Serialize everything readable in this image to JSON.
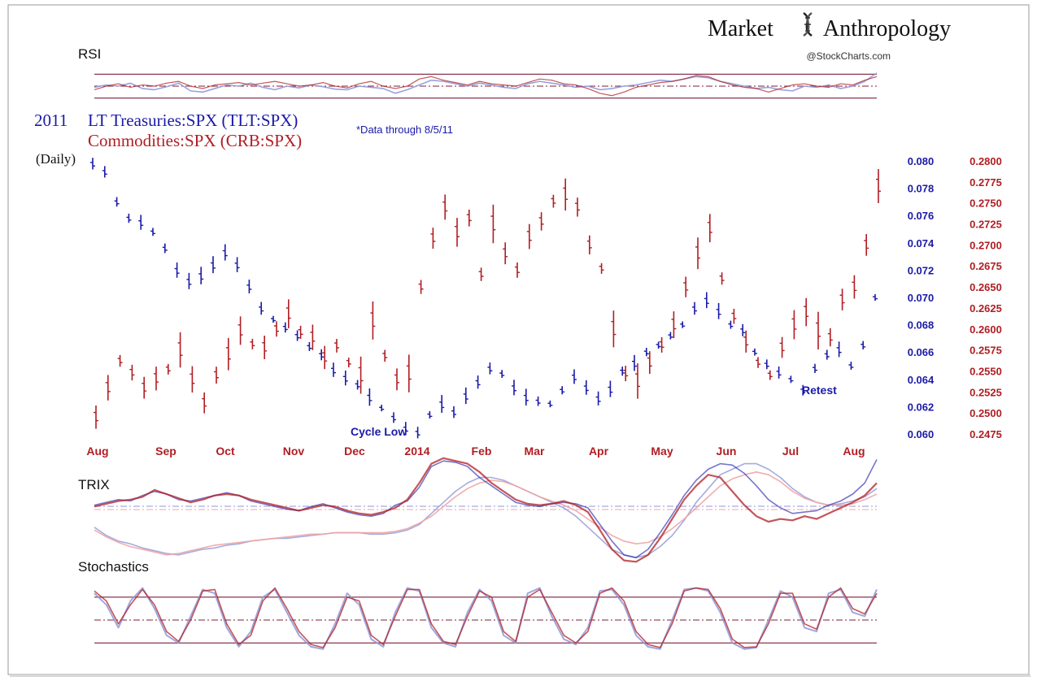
{
  "brand": {
    "name_part1": "Market",
    "name_part2": "Anthropology",
    "logo_icon": "dna-helix-icon",
    "credit": "@StockCharts.com"
  },
  "colors": {
    "blue": "#1a1aa8",
    "red": "#b01e23",
    "light_blue": "#8f97d8",
    "light_red": "#f0a4a4",
    "band": "#7b1f3a"
  },
  "panels": {
    "rsi_label": "RSI",
    "trix_label": "TRIX",
    "stoch_label": "Stochastics"
  },
  "titles": {
    "year": "2011",
    "blue_title": "LT Treasuries:SPX (TLT:SPX)",
    "red_title": "Commodities:SPX (CRB:SPX)",
    "note": "*Data through 8/5/11",
    "daily": "(Daily)"
  },
  "annotations": {
    "cycle_low": "Cycle Low",
    "retest": "Retest"
  },
  "chart_data": {
    "type": "bar",
    "title": "2011 LT Treasuries:SPX (TLT:SPX) / Commodities:SPX (CRB:SPX)",
    "x_tick_labels": [
      "Aug",
      "Sep",
      "Oct",
      "Nov",
      "Dec",
      "2014",
      "Feb",
      "Mar",
      "Apr",
      "May",
      "Jun",
      "Jul",
      "Aug"
    ],
    "left_axis": {
      "ticks": [
        "0.080",
        "0.078",
        "0.076",
        "0.074",
        "0.072",
        "0.070",
        "0.068",
        "0.066",
        "0.064",
        "0.062",
        "0.060"
      ],
      "range": [
        0.06,
        0.08
      ]
    },
    "right_axis": {
      "ticks": [
        "0.2800",
        "0.2775",
        "0.2750",
        "0.2725",
        "0.2700",
        "0.2675",
        "0.2650",
        "0.2625",
        "0.2600",
        "0.2575",
        "0.2550",
        "0.2525",
        "0.2500",
        "0.2475"
      ],
      "range": [
        0.2475,
        0.28
      ]
    },
    "series": [
      {
        "name": "TLT:SPX",
        "axis": "left",
        "values": [
          0.0798,
          0.0792,
          0.077,
          0.0758,
          0.0755,
          0.0748,
          0.0736,
          0.072,
          0.0712,
          0.0716,
          0.0724,
          0.0733,
          0.0724,
          0.0708,
          0.0692,
          0.0684,
          0.0678,
          0.0672,
          0.0664,
          0.0658,
          0.0647,
          0.0641,
          0.0636,
          0.0627,
          0.0619,
          0.0612,
          0.0604,
          0.0601,
          0.0614,
          0.0622,
          0.0616,
          0.0628,
          0.0638,
          0.0648,
          0.0644,
          0.0634,
          0.0627,
          0.0624,
          0.0622,
          0.0632,
          0.0642,
          0.0634,
          0.0626,
          0.0633,
          0.0646,
          0.0652,
          0.066,
          0.0665,
          0.0672,
          0.068,
          0.0692,
          0.0698,
          0.069,
          0.068,
          0.0676,
          0.066,
          0.0651,
          0.0645,
          0.064,
          0.0632,
          0.0648,
          0.0658,
          0.0662,
          0.065,
          0.0665,
          0.07
        ]
      },
      {
        "name": "CRB:SPX",
        "axis": "right",
        "values": [
          0.2495,
          0.253,
          0.2562,
          0.2548,
          0.253,
          0.2541,
          0.2552,
          0.2575,
          0.254,
          0.2512,
          0.2545,
          0.257,
          0.2598,
          0.2582,
          0.2578,
          0.26,
          0.2618,
          0.2596,
          0.259,
          0.2566,
          0.258,
          0.256,
          0.2545,
          0.261,
          0.2568,
          0.254,
          0.2547,
          0.265,
          0.2708,
          0.2745,
          0.2715,
          0.2732,
          0.2665,
          0.2725,
          0.269,
          0.267,
          0.271,
          0.2728,
          0.2752,
          0.276,
          0.2745,
          0.27,
          0.2672,
          0.26,
          0.2547,
          0.2538,
          0.256,
          0.2581,
          0.2605,
          0.265,
          0.269,
          0.272,
          0.266,
          0.2615,
          0.2585,
          0.256,
          0.2545,
          0.2578,
          0.2605,
          0.262,
          0.2598,
          0.259,
          0.2635,
          0.265,
          0.27,
          0.277
        ]
      }
    ],
    "indicators": {
      "rsi": {
        "overbought": 70,
        "oversold": 30,
        "mid": 50,
        "blue": [
          48,
          52,
          50,
          55,
          46,
          44,
          49,
          55,
          42,
          40,
          46,
          52,
          50,
          55,
          48,
          44,
          50,
          47,
          52,
          49,
          45,
          44,
          50,
          48,
          46,
          38,
          44,
          52,
          60,
          58,
          54,
          50,
          55,
          52,
          48,
          46,
          54,
          58,
          55,
          52,
          48,
          50,
          44,
          46,
          50,
          52,
          56,
          60,
          58,
          62,
          66,
          64,
          58,
          54,
          50,
          46,
          48,
          44,
          42,
          50,
          48,
          52,
          46,
          50,
          58,
          72
        ],
        "red": [
          44,
          50,
          54,
          48,
          52,
          50,
          55,
          58,
          50,
          46,
          52,
          54,
          56,
          52,
          55,
          58,
          54,
          50,
          52,
          56,
          50,
          47,
          54,
          58,
          50,
          46,
          50,
          62,
          66,
          60,
          56,
          52,
          58,
          54,
          52,
          50,
          56,
          62,
          60,
          54,
          52,
          46,
          38,
          34,
          40,
          48,
          52,
          56,
          58,
          62,
          68,
          66,
          58,
          52,
          48,
          46,
          40,
          46,
          52,
          54,
          50,
          48,
          54,
          52,
          60,
          66
        ]
      },
      "trix": {
        "blue_fast": [
          0.2,
          0.4,
          0.6,
          0.5,
          0.9,
          1.2,
          1.0,
          0.6,
          0.5,
          0.7,
          0.9,
          1.1,
          0.9,
          0.5,
          0.3,
          0.1,
          -0.1,
          -0.2,
          0.1,
          0.3,
          0.0,
          -0.3,
          -0.5,
          -0.6,
          -0.4,
          0.2,
          0.5,
          1.5,
          3.0,
          3.4,
          3.3,
          3.0,
          2.2,
          1.6,
          1.0,
          0.4,
          0.2,
          0.1,
          0.3,
          0.4,
          0.3,
          0.0,
          -1.2,
          -2.4,
          -3.4,
          -3.6,
          -3.0,
          -1.8,
          -0.5,
          0.9,
          2.0,
          2.8,
          3.2,
          3.1,
          2.5,
          1.6,
          0.6,
          0.0,
          -0.4,
          -0.3,
          -0.2,
          0.2,
          0.5,
          1.0,
          1.8,
          3.5
        ],
        "blue_slow": [
          -1.4,
          -2.0,
          -2.4,
          -2.6,
          -2.9,
          -3.1,
          -3.3,
          -3.4,
          -3.2,
          -3.0,
          -2.9,
          -2.7,
          -2.6,
          -2.4,
          -2.3,
          -2.2,
          -2.2,
          -2.1,
          -2.0,
          -1.9,
          -1.8,
          -1.8,
          -1.8,
          -1.9,
          -1.9,
          -1.8,
          -1.6,
          -1.2,
          -0.4,
          0.4,
          1.2,
          1.8,
          2.2,
          2.2,
          2.0,
          1.6,
          1.2,
          0.8,
          0.4,
          0.0,
          -0.6,
          -1.4,
          -2.2,
          -3.0,
          -3.4,
          -3.6,
          -3.4,
          -2.8,
          -2.0,
          -0.9,
          0.4,
          1.4,
          2.4,
          2.8,
          3.2,
          3.2,
          2.8,
          2.2,
          1.4,
          0.8,
          0.4,
          0.2,
          0.3,
          0.5,
          0.8,
          1.4
        ],
        "red_fast": [
          0.1,
          0.3,
          0.5,
          0.6,
          0.8,
          1.3,
          1.0,
          0.7,
          0.4,
          0.6,
          0.9,
          1.0,
          0.9,
          0.6,
          0.4,
          0.2,
          0.0,
          -0.2,
          0.0,
          0.2,
          0.1,
          -0.2,
          -0.4,
          -0.5,
          -0.3,
          0.0,
          0.6,
          1.8,
          3.2,
          3.6,
          3.4,
          3.2,
          2.6,
          1.8,
          1.2,
          0.6,
          0.3,
          0.2,
          0.3,
          0.5,
          0.2,
          -0.3,
          -1.6,
          -3.0,
          -3.8,
          -3.9,
          -3.4,
          -2.2,
          -0.8,
          0.6,
          1.6,
          2.4,
          2.2,
          1.2,
          0.2,
          -0.6,
          -1.0,
          -0.8,
          -0.9,
          -0.6,
          -0.8,
          -0.4,
          0.0,
          0.4,
          0.9,
          1.8
        ],
        "red_slow": [
          -1.6,
          -2.1,
          -2.5,
          -2.8,
          -3.0,
          -3.2,
          -3.4,
          -3.3,
          -3.1,
          -2.9,
          -2.7,
          -2.6,
          -2.5,
          -2.4,
          -2.3,
          -2.2,
          -2.1,
          -2.0,
          -1.9,
          -1.9,
          -1.8,
          -1.8,
          -1.8,
          -1.8,
          -1.8,
          -1.7,
          -1.5,
          -1.1,
          -0.6,
          0.1,
          0.8,
          1.4,
          1.8,
          2.0,
          1.9,
          1.6,
          1.2,
          0.8,
          0.5,
          0.2,
          -0.2,
          -0.8,
          -1.4,
          -2.0,
          -2.4,
          -2.6,
          -2.5,
          -2.1,
          -1.5,
          -0.8,
          0.0,
          0.8,
          1.6,
          2.1,
          2.4,
          2.6,
          2.4,
          1.9,
          1.2,
          0.7,
          0.4,
          0.2,
          0.2,
          0.3,
          0.6,
          1.0
        ]
      },
      "stochastics": {
        "upper": 80,
        "mid": 50,
        "lower": 20,
        "blue": [
          85,
          70,
          40,
          75,
          92,
          65,
          30,
          20,
          55,
          90,
          85,
          40,
          15,
          35,
          80,
          90,
          60,
          30,
          15,
          12,
          45,
          85,
          70,
          25,
          15,
          60,
          92,
          88,
          40,
          20,
          15,
          60,
          90,
          75,
          30,
          20,
          85,
          92,
          55,
          25,
          18,
          40,
          88,
          90,
          70,
          30,
          15,
          12,
          50,
          90,
          92,
          88,
          60,
          20,
          12,
          14,
          50,
          88,
          80,
          40,
          35,
          85,
          90,
          60,
          55,
          90
        ],
        "red": [
          88,
          75,
          45,
          70,
          90,
          70,
          35,
          22,
          50,
          88,
          90,
          45,
          18,
          30,
          75,
          92,
          65,
          35,
          18,
          14,
          40,
          80,
          75,
          30,
          18,
          55,
          90,
          90,
          45,
          22,
          18,
          55,
          88,
          80,
          35,
          22,
          80,
          90,
          60,
          30,
          20,
          35,
          85,
          92,
          75,
          35,
          18,
          14,
          45,
          88,
          92,
          90,
          65,
          25,
          14,
          15,
          45,
          85,
          85,
          45,
          38,
          80,
          92,
          65,
          58,
          85
        ]
      }
    }
  }
}
